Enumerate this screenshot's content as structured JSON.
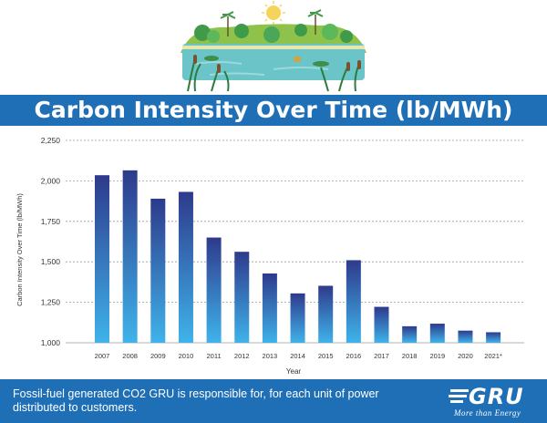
{
  "title": "Carbon Intensity Over Time (lb/MWh)",
  "footer": {
    "text": "Fossil-fuel generated CO2 GRU is responsible for, for each unit of power distributed to customers.",
    "logo_word": "GRU",
    "logo_tagline": "More than Energy"
  },
  "colors": {
    "band": "#1f6fb7",
    "bar_top": "#2e3a8c",
    "bar_bottom": "#3fb3ea",
    "grid": "#9a9a9a"
  },
  "chart_data": {
    "type": "bar",
    "categories": [
      "2007",
      "2008",
      "2009",
      "2010",
      "2011",
      "2012",
      "2013",
      "2014",
      "2015",
      "2016",
      "2017",
      "2018",
      "2019",
      "2020",
      "2021*"
    ],
    "values": [
      2035,
      2065,
      1890,
      1932,
      1650,
      1562,
      1428,
      1305,
      1352,
      1510,
      1222,
      1102,
      1118,
      1075,
      1065
    ],
    "xlabel": "Year",
    "ylabel": "Carbon Intensity Over Time (lb/MWh)",
    "ylim": [
      1000,
      2250
    ],
    "yticks": [
      "1,000",
      "1,250",
      "1,500",
      "1,750",
      "2,000",
      "2,250"
    ],
    "ytick_values": [
      1000,
      1250,
      1500,
      1750,
      2000,
      2250
    ],
    "grid": true,
    "legend": "none"
  }
}
